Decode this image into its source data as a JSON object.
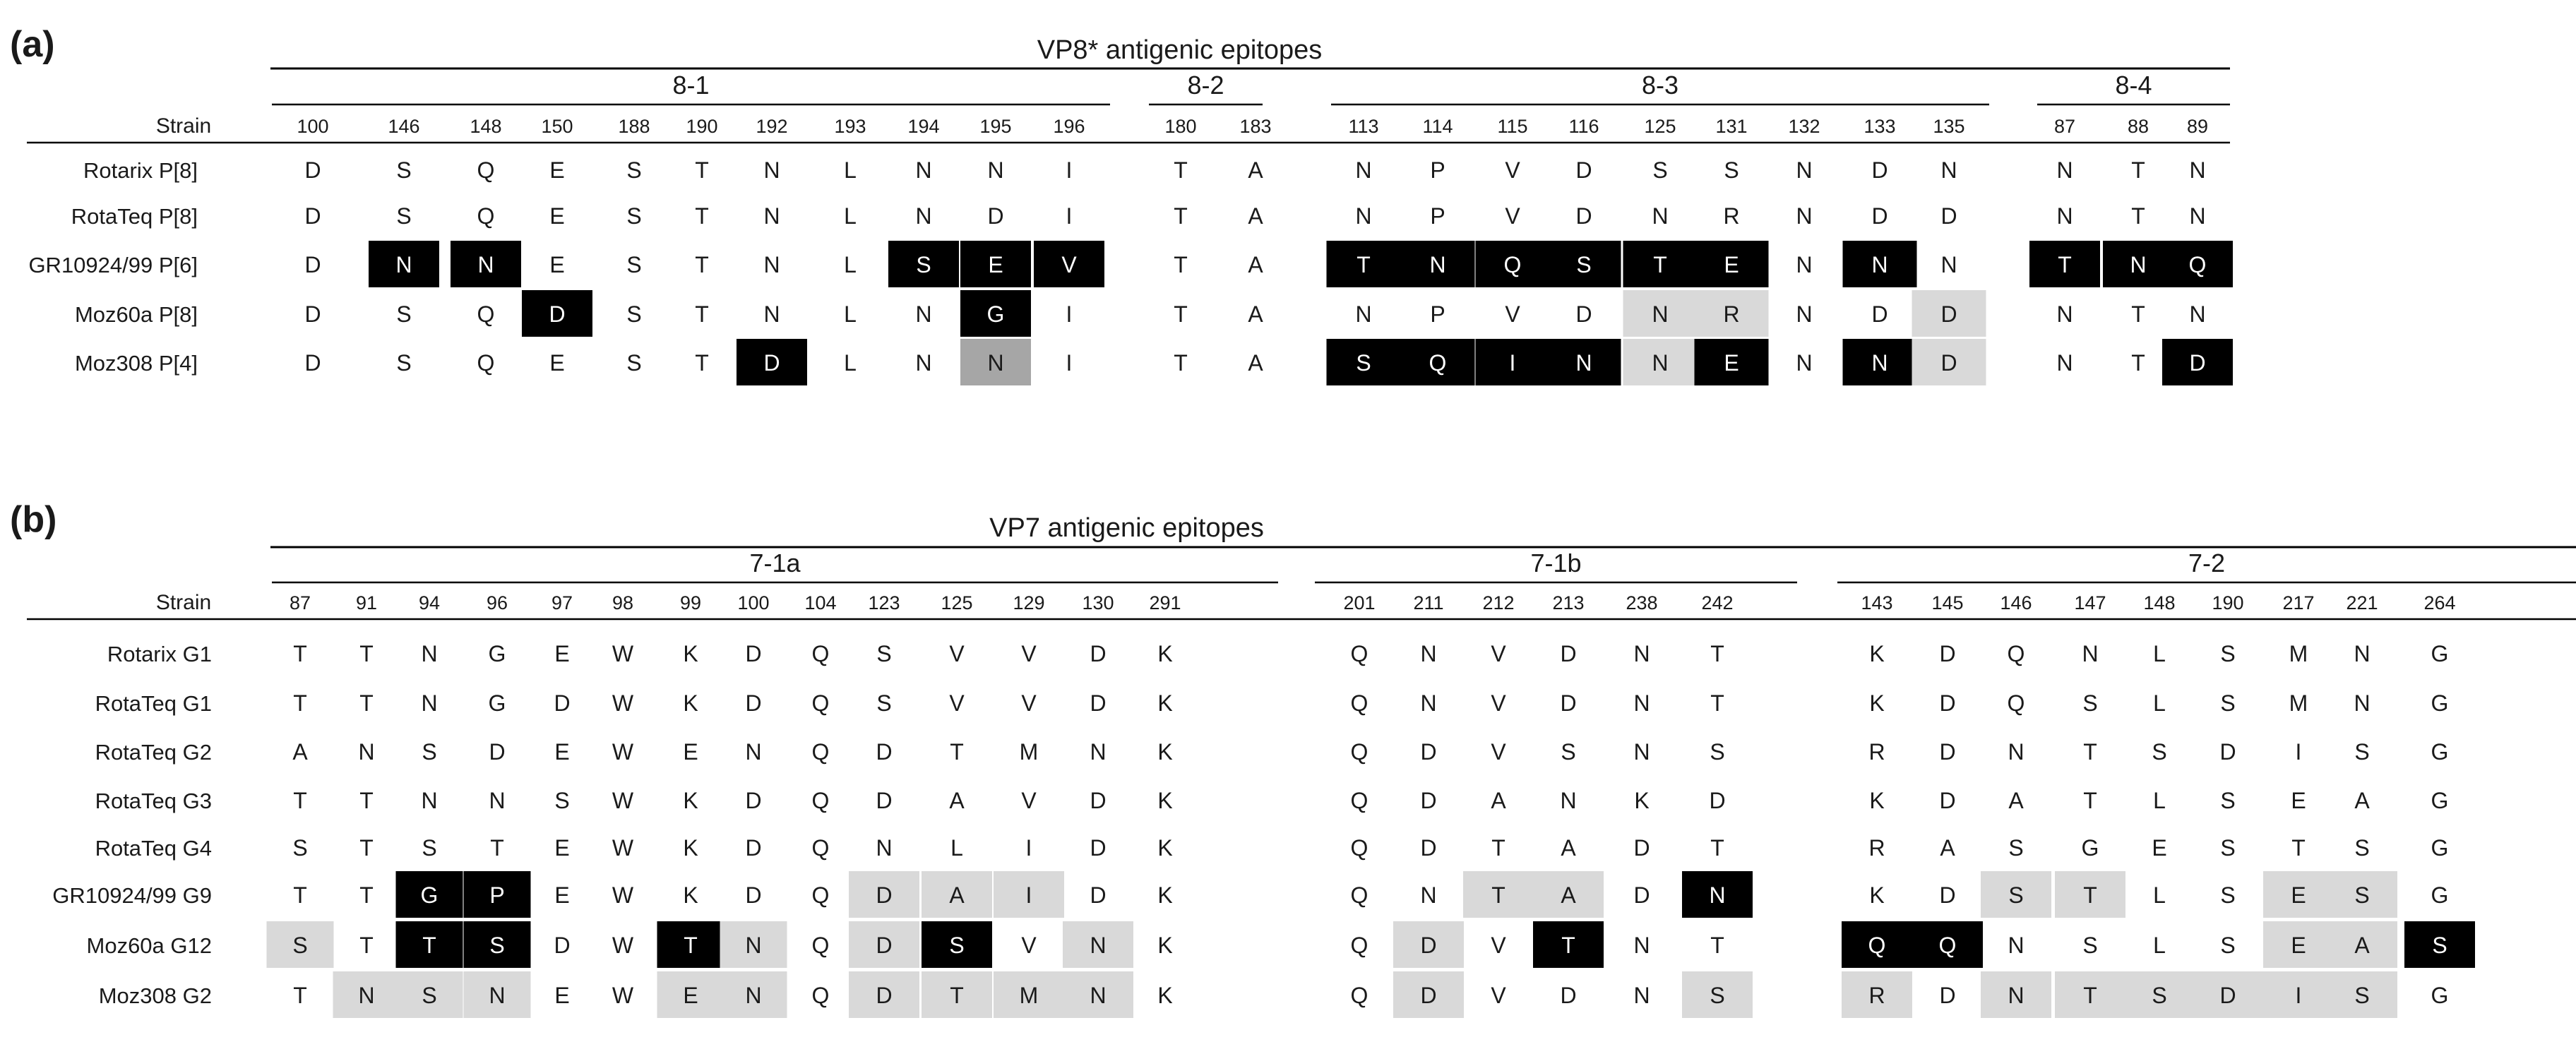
{
  "panels": [
    {
      "label": "(a)",
      "title": "VP8* antigenic epitopes",
      "strain_header": "Strain",
      "groups": [
        {
          "name": "8-1",
          "positions": [
            "100",
            "146",
            "148",
            "150",
            "188",
            "190",
            "192",
            "193",
            "194",
            "195",
            "196"
          ]
        },
        {
          "name": "8-2",
          "positions": [
            "180",
            "183"
          ]
        },
        {
          "name": "8-3",
          "positions": [
            "113",
            "114",
            "115",
            "116",
            "125",
            "131",
            "132",
            "133",
            "135"
          ]
        },
        {
          "name": "8-4",
          "positions": [
            "87",
            "88",
            "89"
          ]
        }
      ],
      "rows": [
        {
          "strain": "Rotarix P[8]",
          "residues": [
            "D",
            "S",
            "Q",
            "E",
            "S",
            "T",
            "N",
            "L",
            "N",
            "N",
            "I",
            "T",
            "A",
            "N",
            "P",
            "V",
            "D",
            "S",
            "S",
            "N",
            "D",
            "N",
            "N",
            "T",
            "N"
          ],
          "shading": [
            "",
            "",
            "",
            "",
            "",
            "",
            "",
            "",
            "",
            "",
            "",
            "",
            "",
            "",
            "",
            "",
            "",
            "",
            "",
            "",
            "",
            "",
            "",
            "",
            ""
          ]
        },
        {
          "strain": "RotaTeq P[8]",
          "residues": [
            "D",
            "S",
            "Q",
            "E",
            "S",
            "T",
            "N",
            "L",
            "N",
            "D",
            "I",
            "T",
            "A",
            "N",
            "P",
            "V",
            "D",
            "N",
            "R",
            "N",
            "D",
            "D",
            "N",
            "T",
            "N"
          ],
          "shading": [
            "",
            "",
            "",
            "",
            "",
            "",
            "",
            "",
            "",
            "",
            "",
            "",
            "",
            "",
            "",
            "",
            "",
            "",
            "",
            "",
            "",
            "",
            "",
            "",
            ""
          ]
        },
        {
          "strain": "GR10924/99 P[6]",
          "residues": [
            "D",
            "N",
            "N",
            "E",
            "S",
            "T",
            "N",
            "L",
            "S",
            "E",
            "V",
            "T",
            "A",
            "T",
            "N",
            "Q",
            "S",
            "T",
            "E",
            "N",
            "N",
            "N",
            "T",
            "N",
            "Q"
          ],
          "shading": [
            "",
            "B",
            "B",
            "",
            "",
            "",
            "",
            "",
            "B",
            "B",
            "B",
            "",
            "",
            "B",
            "B",
            "B",
            "B",
            "B",
            "B",
            "",
            "B",
            "",
            "B",
            "B",
            "B"
          ]
        },
        {
          "strain": "Moz60a P[8]",
          "residues": [
            "D",
            "S",
            "Q",
            "D",
            "S",
            "T",
            "N",
            "L",
            "N",
            "G",
            "I",
            "T",
            "A",
            "N",
            "P",
            "V",
            "D",
            "N",
            "R",
            "N",
            "D",
            "D",
            "N",
            "T",
            "N"
          ],
          "shading": [
            "",
            "",
            "",
            "B",
            "",
            "",
            "",
            "",
            "",
            "B",
            "",
            "",
            "",
            "",
            "",
            "",
            "",
            "L",
            "L",
            "",
            "",
            "L",
            "",
            "",
            ""
          ]
        },
        {
          "strain": "Moz308 P[4]",
          "residues": [
            "D",
            "S",
            "Q",
            "E",
            "S",
            "T",
            "D",
            "L",
            "N",
            "N",
            "I",
            "T",
            "A",
            "S",
            "Q",
            "I",
            "N",
            "N",
            "E",
            "N",
            "N",
            "D",
            "N",
            "T",
            "D"
          ],
          "shading": [
            "",
            "",
            "",
            "",
            "",
            "",
            "B",
            "",
            "",
            "M",
            "",
            "",
            "",
            "B",
            "B",
            "B",
            "B",
            "L",
            "B",
            "",
            "B",
            "L",
            "",
            "",
            "B"
          ]
        }
      ]
    },
    {
      "label": "(b)",
      "title": "VP7 antigenic epitopes",
      "strain_header": "Strain",
      "groups": [
        {
          "name": "7-1a",
          "positions": [
            "87",
            "91",
            "94",
            "96",
            "97",
            "98",
            "99",
            "100",
            "104",
            "123",
            "125",
            "129",
            "130",
            "291"
          ]
        },
        {
          "name": "7-1b",
          "positions": [
            "201",
            "211",
            "212",
            "213",
            "238",
            "242"
          ]
        },
        {
          "name": "7-2",
          "positions": [
            "143",
            "145",
            "146",
            "147",
            "148",
            "190",
            "217",
            "221",
            "264"
          ]
        }
      ],
      "rows": [
        {
          "strain": "Rotarix G1",
          "residues": [
            "T",
            "T",
            "N",
            "G",
            "E",
            "W",
            "K",
            "D",
            "Q",
            "S",
            "V",
            "V",
            "D",
            "K",
            "Q",
            "N",
            "V",
            "D",
            "N",
            "T",
            "K",
            "D",
            "Q",
            "N",
            "L",
            "S",
            "M",
            "N",
            "G"
          ],
          "shading": [
            "",
            "",
            "",
            "",
            "",
            "",
            "",
            "",
            "",
            "",
            "",
            "",
            "",
            "",
            "",
            "",
            "",
            "",
            "",
            "",
            "",
            "",
            "",
            "",
            "",
            "",
            "",
            "",
            ""
          ]
        },
        {
          "strain": "RotaTeq G1",
          "residues": [
            "T",
            "T",
            "N",
            "G",
            "D",
            "W",
            "K",
            "D",
            "Q",
            "S",
            "V",
            "V",
            "D",
            "K",
            "Q",
            "N",
            "V",
            "D",
            "N",
            "T",
            "K",
            "D",
            "Q",
            "S",
            "L",
            "S",
            "M",
            "N",
            "G"
          ],
          "shading": [
            "",
            "",
            "",
            "",
            "",
            "",
            "",
            "",
            "",
            "",
            "",
            "",
            "",
            "",
            "",
            "",
            "",
            "",
            "",
            "",
            "",
            "",
            "",
            "",
            "",
            "",
            "",
            "",
            ""
          ]
        },
        {
          "strain": "RotaTeq G2",
          "residues": [
            "A",
            "N",
            "S",
            "D",
            "E",
            "W",
            "E",
            "N",
            "Q",
            "D",
            "T",
            "M",
            "N",
            "K",
            "Q",
            "D",
            "V",
            "S",
            "N",
            "S",
            "R",
            "D",
            "N",
            "T",
            "S",
            "D",
            "I",
            "S",
            "G"
          ],
          "shading": [
            "",
            "",
            "",
            "",
            "",
            "",
            "",
            "",
            "",
            "",
            "",
            "",
            "",
            "",
            "",
            "",
            "",
            "",
            "",
            "",
            "",
            "",
            "",
            "",
            "",
            "",
            "",
            "",
            ""
          ]
        },
        {
          "strain": "RotaTeq G3",
          "residues": [
            "T",
            "T",
            "N",
            "N",
            "S",
            "W",
            "K",
            "D",
            "Q",
            "D",
            "A",
            "V",
            "D",
            "K",
            "Q",
            "D",
            "A",
            "N",
            "K",
            "D",
            "K",
            "D",
            "A",
            "T",
            "L",
            "S",
            "E",
            "A",
            "G"
          ],
          "shading": [
            "",
            "",
            "",
            "",
            "",
            "",
            "",
            "",
            "",
            "",
            "",
            "",
            "",
            "",
            "",
            "",
            "",
            "",
            "",
            "",
            "",
            "",
            "",
            "",
            "",
            "",
            "",
            "",
            ""
          ]
        },
        {
          "strain": "RotaTeq G4",
          "residues": [
            "S",
            "T",
            "S",
            "T",
            "E",
            "W",
            "K",
            "D",
            "Q",
            "N",
            "L",
            "I",
            "D",
            "K",
            "Q",
            "D",
            "T",
            "A",
            "D",
            "T",
            "R",
            "A",
            "S",
            "G",
            "E",
            "S",
            "T",
            "S",
            "G"
          ],
          "shading": [
            "",
            "",
            "",
            "",
            "",
            "",
            "",
            "",
            "",
            "",
            "",
            "",
            "",
            "",
            "",
            "",
            "",
            "",
            "",
            "",
            "",
            "",
            "",
            "",
            "",
            "",
            "",
            "",
            ""
          ]
        },
        {
          "strain": "GR10924/99 G9",
          "residues": [
            "T",
            "T",
            "G",
            "P",
            "E",
            "W",
            "K",
            "D",
            "Q",
            "D",
            "A",
            "I",
            "D",
            "K",
            "Q",
            "N",
            "T",
            "A",
            "D",
            "N",
            "K",
            "D",
            "S",
            "T",
            "L",
            "S",
            "E",
            "S",
            "G"
          ],
          "shading": [
            "",
            "",
            "B",
            "B",
            "",
            "",
            "",
            "",
            "",
            "L",
            "L",
            "L",
            "",
            "",
            "",
            "",
            "L",
            "L",
            "",
            "B",
            "",
            "",
            "L",
            "L",
            "",
            "",
            "L",
            "L",
            ""
          ]
        },
        {
          "strain": "Moz60a G12",
          "residues": [
            "S",
            "T",
            "T",
            "S",
            "D",
            "W",
            "T",
            "N",
            "Q",
            "D",
            "S",
            "V",
            "N",
            "K",
            "Q",
            "D",
            "V",
            "T",
            "N",
            "T",
            "Q",
            "Q",
            "N",
            "S",
            "L",
            "S",
            "E",
            "A",
            "S"
          ],
          "shading": [
            "L",
            "",
            "B",
            "B",
            "",
            "",
            "B",
            "L",
            "",
            "L",
            "B",
            "",
            "L",
            "",
            "",
            "L",
            "",
            "B",
            "",
            "",
            "B",
            "B",
            "",
            "",
            "",
            "",
            "L",
            "L",
            "B"
          ]
        },
        {
          "strain": "Moz308 G2",
          "residues": [
            "T",
            "N",
            "S",
            "N",
            "E",
            "W",
            "E",
            "N",
            "Q",
            "D",
            "T",
            "M",
            "N",
            "K",
            "Q",
            "D",
            "V",
            "D",
            "N",
            "S",
            "R",
            "D",
            "N",
            "T",
            "S",
            "D",
            "I",
            "S",
            "G"
          ],
          "shading": [
            "",
            "L",
            "L",
            "L",
            "",
            "",
            "L",
            "L",
            "",
            "L",
            "L",
            "L",
            "L",
            "",
            "",
            "L",
            "",
            "",
            "",
            "L",
            "L",
            "",
            "L",
            "L",
            "L",
            "L",
            "L",
            "L",
            ""
          ]
        }
      ]
    }
  ],
  "colors": {
    "text": "#1a1a1a",
    "black_cell": "#000000",
    "black_cell_text": "#ffffff",
    "light_cell": "#d9d9d9",
    "medium_cell": "#a6a6a6",
    "rule": "#000000"
  }
}
